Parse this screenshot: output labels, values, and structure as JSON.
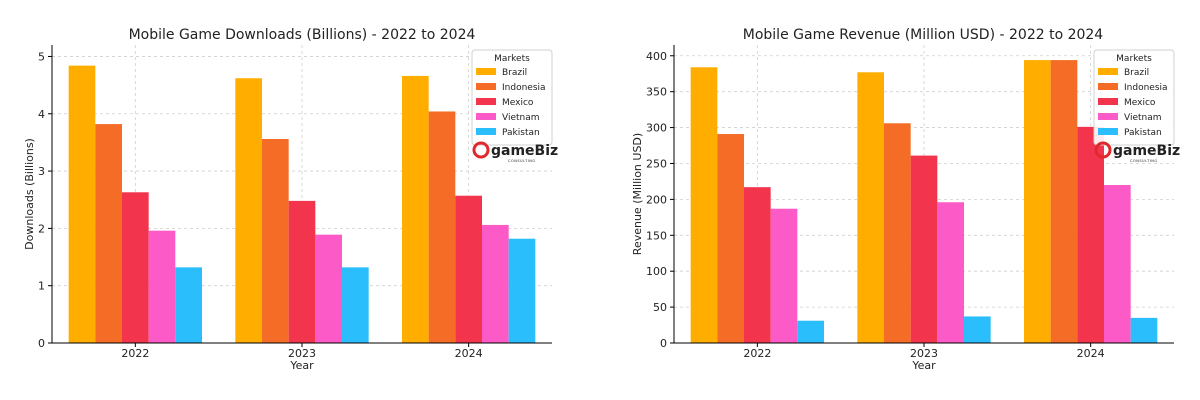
{
  "chart_data": [
    {
      "type": "bar",
      "title": "Mobile Game Downloads (Billions) - 2022 to 2024",
      "xlabel": "Year",
      "ylabel": "Downloads (Billions)",
      "categories": [
        "2022",
        "2023",
        "2024"
      ],
      "ylim": [
        0,
        5.2
      ],
      "yticks": [
        0,
        1,
        2,
        3,
        4,
        5
      ],
      "grid": true,
      "legend_title": "Markets",
      "legend_position": "top-right",
      "series": [
        {
          "name": "Brazil",
          "color": "#FFAE00",
          "values": [
            4.84,
            4.62,
            4.66
          ]
        },
        {
          "name": "Indonesia",
          "color": "#F56C26",
          "values": [
            3.82,
            3.56,
            4.04
          ]
        },
        {
          "name": "Mexico",
          "color": "#F2354C",
          "values": [
            2.63,
            2.48,
            2.57
          ]
        },
        {
          "name": "Vietnam",
          "color": "#FC5AC6",
          "values": [
            1.96,
            1.89,
            2.06
          ]
        },
        {
          "name": "Pakistan",
          "color": "#2BBEFC",
          "values": [
            1.32,
            1.32,
            1.82
          ]
        }
      ]
    },
    {
      "type": "bar",
      "title": "Mobile Game Revenue (Million USD) - 2022 to 2024",
      "xlabel": "Year",
      "ylabel": "Revenue (Million USD)",
      "categories": [
        "2022",
        "2023",
        "2024"
      ],
      "ylim": [
        0,
        415
      ],
      "yticks": [
        0,
        50,
        100,
        150,
        200,
        250,
        300,
        350,
        400
      ],
      "grid": true,
      "legend_title": "Markets",
      "legend_position": "top-right",
      "series": [
        {
          "name": "Brazil",
          "color": "#FFAE00",
          "values": [
            384,
            377,
            394
          ]
        },
        {
          "name": "Indonesia",
          "color": "#F56C26",
          "values": [
            291,
            306,
            394
          ]
        },
        {
          "name": "Mexico",
          "color": "#F2354C",
          "values": [
            217,
            261,
            301
          ]
        },
        {
          "name": "Vietnam",
          "color": "#FC5AC6",
          "values": [
            187,
            196,
            220
          ]
        },
        {
          "name": "Pakistan",
          "color": "#2BBEFC",
          "values": [
            31,
            37,
            35
          ]
        }
      ]
    }
  ],
  "logo": {
    "text": "gameBiz",
    "subtext": "CONSULTING",
    "color": "#E0292C"
  }
}
